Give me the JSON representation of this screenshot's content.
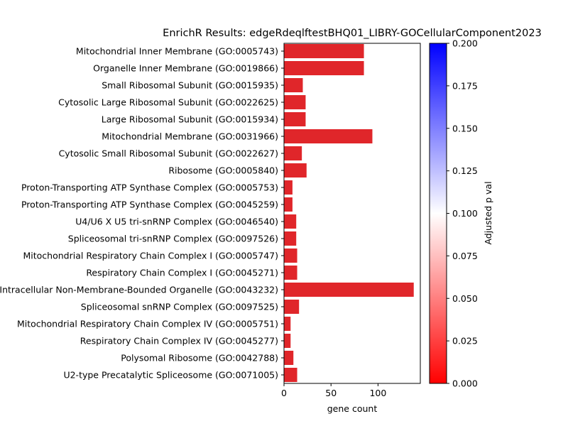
{
  "chart_data": {
    "type": "bar",
    "orientation": "horizontal",
    "title": "EnrichR Results: edgeRdeqlftestBHQ01_LIBRY-GOCellularComponent2023",
    "xlabel": "gene count",
    "ylabel": "",
    "xlim": [
      0,
      145
    ],
    "xticks": [
      "0",
      "50",
      "100"
    ],
    "grid": false,
    "bar_color": "#e0262a",
    "categories": [
      "Mitochondrial Inner Membrane (GO:0005743)",
      "Organelle Inner Membrane (GO:0019866)",
      "Small Ribosomal Subunit (GO:0015935)",
      "Cytosolic Large Ribosomal Subunit (GO:0022625)",
      "Large Ribosomal Subunit (GO:0015934)",
      "Mitochondrial Membrane (GO:0031966)",
      "Cytosolic Small Ribosomal Subunit (GO:0022627)",
      "Ribosome (GO:0005840)",
      "Proton-Transporting ATP Synthase Complex (GO:0005753)",
      "Proton-Transporting ATP Synthase Complex (GO:0045259)",
      "U4/U6 X U5 tri-snRNP Complex (GO:0046540)",
      "Spliceosomal tri-snRNP Complex (GO:0097526)",
      "Mitochondrial Respiratory Chain Complex I (GO:0005747)",
      "Respiratory Chain Complex I (GO:0045271)",
      "Intracellular Non-Membrane-Bounded Organelle (GO:0043232)",
      "Spliceosomal snRNP Complex (GO:0097525)",
      "Mitochondrial Respiratory Chain Complex IV (GO:0005751)",
      "Respiratory Chain Complex IV (GO:0045277)",
      "Polysomal Ribosome (GO:0042788)",
      "U2-type Precatalytic Spliceosome (GO:0071005)"
    ],
    "values": [
      85,
      85,
      20,
      23,
      23,
      94,
      19,
      24,
      9,
      9,
      13,
      13,
      14,
      14,
      138,
      16,
      7,
      7,
      10,
      14
    ],
    "colorbar": {
      "label": "Adjusted p val",
      "range": [
        0,
        0.2
      ],
      "ticks": [
        "0.000",
        "0.025",
        "0.050",
        "0.075",
        "0.100",
        "0.125",
        "0.150",
        "0.175",
        "0.200"
      ],
      "colormap": [
        "#ff0000",
        "#ffffff",
        "#0000ff"
      ]
    }
  }
}
